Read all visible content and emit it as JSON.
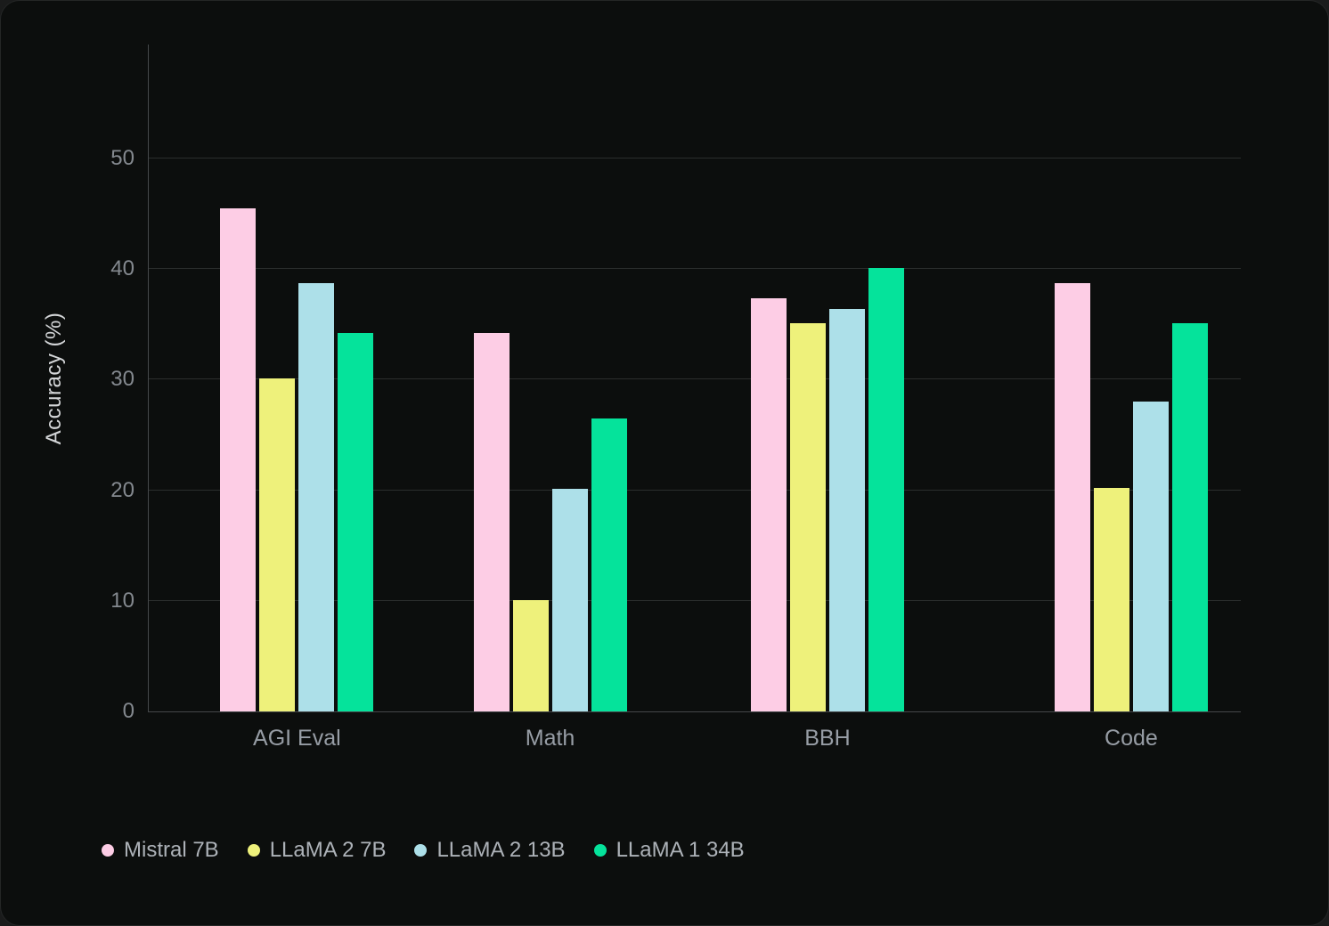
{
  "chart_data": {
    "type": "bar",
    "title": "",
    "xlabel": "",
    "ylabel": "Accuracy (%)",
    "categories": [
      "AGI Eval",
      "Math",
      "BBH",
      "Code"
    ],
    "series": [
      {
        "name": "Mistral 7B",
        "color": "#FDCDE5",
        "values": [
          45.5,
          34.2,
          37.4,
          38.7
        ]
      },
      {
        "name": "LLaMA 2 7B",
        "color": "#EEF17B",
        "values": [
          30.1,
          10.1,
          35.1,
          20.2
        ]
      },
      {
        "name": "LLaMA 2 13B",
        "color": "#ADE0E9",
        "values": [
          38.7,
          20.1,
          36.4,
          28.0
        ]
      },
      {
        "name": "LLaMA 1 34B",
        "color": "#05E39B",
        "values": [
          34.2,
          26.5,
          40.1,
          35.1
        ]
      }
    ],
    "yticks": [
      0,
      10,
      20,
      30,
      40,
      50
    ],
    "ylim": [
      0,
      60.4
    ],
    "grid": true,
    "legend_position": "bottom-left"
  },
  "colors": {
    "card_background": "#0C0E0D",
    "page_background": "#1A1B1B",
    "gridline": "#2B2E2D",
    "axis_line": "#45484A",
    "tick_label": "#84898F",
    "category_label": "#979DA5",
    "axis_title": "#D4D6D8",
    "legend_label": "#ADB2B8"
  }
}
